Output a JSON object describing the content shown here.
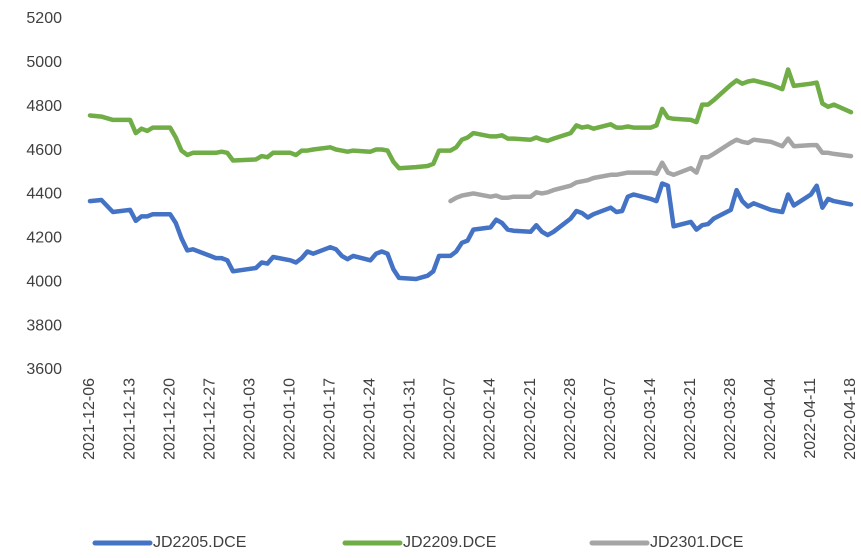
{
  "chart_data": {
    "type": "line",
    "x": [
      "2021-12-06",
      "2021-12-08",
      "2021-12-10",
      "2021-12-13",
      "2021-12-14",
      "2021-12-15",
      "2021-12-16",
      "2021-12-17",
      "2021-12-20",
      "2021-12-21",
      "2021-12-22",
      "2021-12-23",
      "2021-12-24",
      "2021-12-27",
      "2021-12-28",
      "2021-12-29",
      "2021-12-30",
      "2021-12-31",
      "2022-01-04",
      "2022-01-05",
      "2022-01-06",
      "2022-01-07",
      "2022-01-10",
      "2022-01-11",
      "2022-01-12",
      "2022-01-13",
      "2022-01-14",
      "2022-01-17",
      "2022-01-18",
      "2022-01-19",
      "2022-01-20",
      "2022-01-21",
      "2022-01-24",
      "2022-01-25",
      "2022-01-26",
      "2022-01-27",
      "2022-01-28",
      "2022-01-29",
      "2022-02-01",
      "2022-02-03",
      "2022-02-04",
      "2022-02-05",
      "2022-02-07",
      "2022-02-08",
      "2022-02-09",
      "2022-02-10",
      "2022-02-11",
      "2022-02-14",
      "2022-02-15",
      "2022-02-16",
      "2022-02-17",
      "2022-02-18",
      "2022-02-21",
      "2022-02-22",
      "2022-02-23",
      "2022-02-24",
      "2022-02-25",
      "2022-02-28",
      "2022-03-01",
      "2022-03-02",
      "2022-03-03",
      "2022-03-04",
      "2022-03-07",
      "2022-03-08",
      "2022-03-09",
      "2022-03-10",
      "2022-03-11",
      "2022-03-14",
      "2022-03-15",
      "2022-03-16",
      "2022-03-17",
      "2022-03-18",
      "2022-03-21",
      "2022-03-22",
      "2022-03-23",
      "2022-03-24",
      "2022-03-25",
      "2022-03-28",
      "2022-03-29",
      "2022-03-30",
      "2022-03-31",
      "2022-04-01",
      "2022-04-04",
      "2022-04-06",
      "2022-04-07",
      "2022-04-08",
      "2022-04-11",
      "2022-04-12",
      "2022-04-13",
      "2022-04-14",
      "2022-04-15",
      "2022-04-18"
    ],
    "series": [
      {
        "name": "JD2205.DCE",
        "color": "#4472c4",
        "values": [
          4370,
          4375,
          4320,
          4330,
          4280,
          4300,
          4300,
          4310,
          4310,
          4270,
          4200,
          4145,
          4150,
          4120,
          4110,
          4110,
          4100,
          4050,
          4065,
          4090,
          4085,
          4115,
          4100,
          4090,
          4110,
          4140,
          4130,
          4160,
          4150,
          4120,
          4105,
          4120,
          4100,
          4130,
          4140,
          4130,
          4060,
          4020,
          4015,
          4030,
          4050,
          4120,
          4120,
          4140,
          4180,
          4190,
          4240,
          4250,
          4285,
          4270,
          4240,
          4235,
          4230,
          4260,
          4230,
          4215,
          4230,
          4290,
          4325,
          4315,
          4295,
          4310,
          4340,
          4320,
          4325,
          4390,
          4400,
          4380,
          4370,
          4450,
          4440,
          4255,
          4275,
          4240,
          4260,
          4265,
          4290,
          4330,
          4420,
          4370,
          4345,
          4360,
          4330,
          4320,
          4400,
          4350,
          4400,
          4440,
          4340,
          4380,
          4370,
          4355
        ]
      },
      {
        "name": "JD2209.DCE",
        "color": "#70ad47",
        "values": [
          4760,
          4755,
          4740,
          4740,
          4680,
          4700,
          4690,
          4705,
          4705,
          4660,
          4600,
          4580,
          4590,
          4590,
          4590,
          4595,
          4590,
          4555,
          4560,
          4575,
          4570,
          4590,
          4590,
          4580,
          4600,
          4600,
          4605,
          4615,
          4605,
          4600,
          4595,
          4600,
          4595,
          4605,
          4605,
          4600,
          4550,
          4520,
          4525,
          4530,
          4540,
          4600,
          4600,
          4615,
          4650,
          4660,
          4680,
          4665,
          4665,
          4670,
          4655,
          4655,
          4650,
          4660,
          4650,
          4645,
          4655,
          4680,
          4715,
          4705,
          4710,
          4700,
          4720,
          4705,
          4705,
          4710,
          4705,
          4705,
          4715,
          4790,
          4750,
          4745,
          4740,
          4730,
          4810,
          4810,
          4830,
          4900,
          4920,
          4905,
          4915,
          4920,
          4900,
          4880,
          4970,
          4895,
          4905,
          4910,
          4815,
          4800,
          4810,
          4775
        ]
      },
      {
        "name": "JD2301.DCE",
        "color": "#a5a5a5",
        "values": [
          null,
          null,
          null,
          null,
          null,
          null,
          null,
          null,
          null,
          null,
          null,
          null,
          null,
          null,
          null,
          null,
          null,
          null,
          null,
          null,
          null,
          null,
          null,
          null,
          null,
          null,
          null,
          null,
          null,
          null,
          null,
          null,
          null,
          null,
          null,
          null,
          null,
          null,
          null,
          null,
          null,
          null,
          4370,
          4385,
          4395,
          4400,
          4405,
          4390,
          4395,
          4385,
          4385,
          4390,
          4390,
          4410,
          4405,
          4410,
          4420,
          4440,
          4455,
          4460,
          4465,
          4475,
          4490,
          4490,
          4495,
          4500,
          4500,
          4500,
          4495,
          4545,
          4500,
          4490,
          4520,
          4500,
          4570,
          4570,
          4585,
          4635,
          4650,
          4640,
          4635,
          4650,
          4640,
          4620,
          4655,
          4620,
          4625,
          4625,
          4590,
          4590,
          4585,
          4575
        ]
      }
    ],
    "xlim": [
      "2021-12-06",
      "2022-04-18"
    ],
    "xticks": [
      "2021-12-06",
      "2021-12-13",
      "2021-12-20",
      "2021-12-27",
      "2022-01-03",
      "2022-01-10",
      "2022-01-17",
      "2022-01-24",
      "2022-01-31",
      "2022-02-07",
      "2022-02-14",
      "2022-02-21",
      "2022-02-28",
      "2022-03-07",
      "2022-03-14",
      "2022-03-21",
      "2022-03-28",
      "2022-04-04",
      "2022-04-11",
      "2022-04-18"
    ],
    "ylim": [
      3600,
      5200
    ],
    "yticks": [
      3600,
      3800,
      4000,
      4200,
      4400,
      4600,
      4800,
      5000,
      5200
    ],
    "grid": false,
    "legend": "bottom"
  }
}
